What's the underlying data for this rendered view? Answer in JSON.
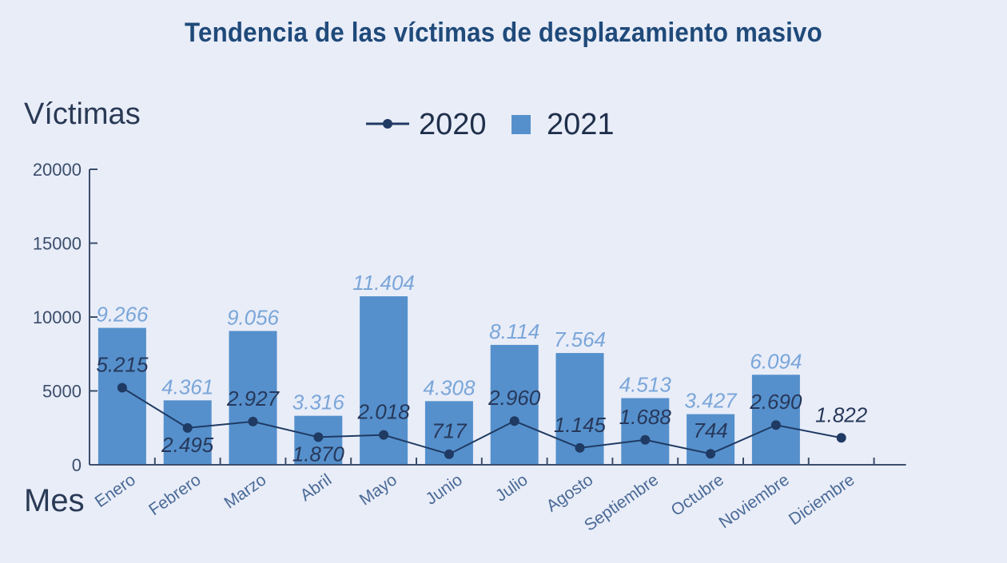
{
  "chart_data": {
    "type": "bar",
    "title": "Tendencia de las víctimas de desplazamiento masivo",
    "ylabel": "Víctimas",
    "xlabel": "Mes",
    "ylim": [
      0,
      20000
    ],
    "yticks": [
      "0",
      "5000",
      "10000",
      "15000",
      "20000"
    ],
    "yticks_values": [
      0,
      5000,
      10000,
      15000,
      20000
    ],
    "grid": false,
    "legend_position": "top",
    "categories": [
      "Enero",
      "Febrero",
      "Marzo",
      "Abril",
      "Mayo",
      "Junio",
      "Julio",
      "Agosto",
      "Septiembre",
      "Octubre",
      "Noviembre",
      "Diciembre"
    ],
    "series": [
      {
        "name": "2020",
        "type": "line",
        "color": "#1f3a63",
        "values": [
          5215,
          2495,
          2927,
          1870,
          2018,
          717,
          2960,
          1145,
          1688,
          744,
          2690,
          1822
        ],
        "labels": [
          "5.215",
          "2.495",
          "2.927",
          "1.870",
          "2.018",
          "717",
          "2.960",
          "1.145",
          "1.688",
          "744",
          "2.690",
          "1.822"
        ]
      },
      {
        "name": "2021",
        "type": "bar",
        "color": "#5590cc",
        "values": [
          9266,
          4361,
          9056,
          3316,
          11404,
          4308,
          8114,
          7564,
          4513,
          3427,
          6094,
          null
        ],
        "labels": [
          "9.266",
          "4.361",
          "9.056",
          "3.316",
          "11.404",
          "4.308",
          "8.114",
          "7.564",
          "4.513",
          "3.427",
          "6.094",
          null
        ]
      }
    ]
  }
}
